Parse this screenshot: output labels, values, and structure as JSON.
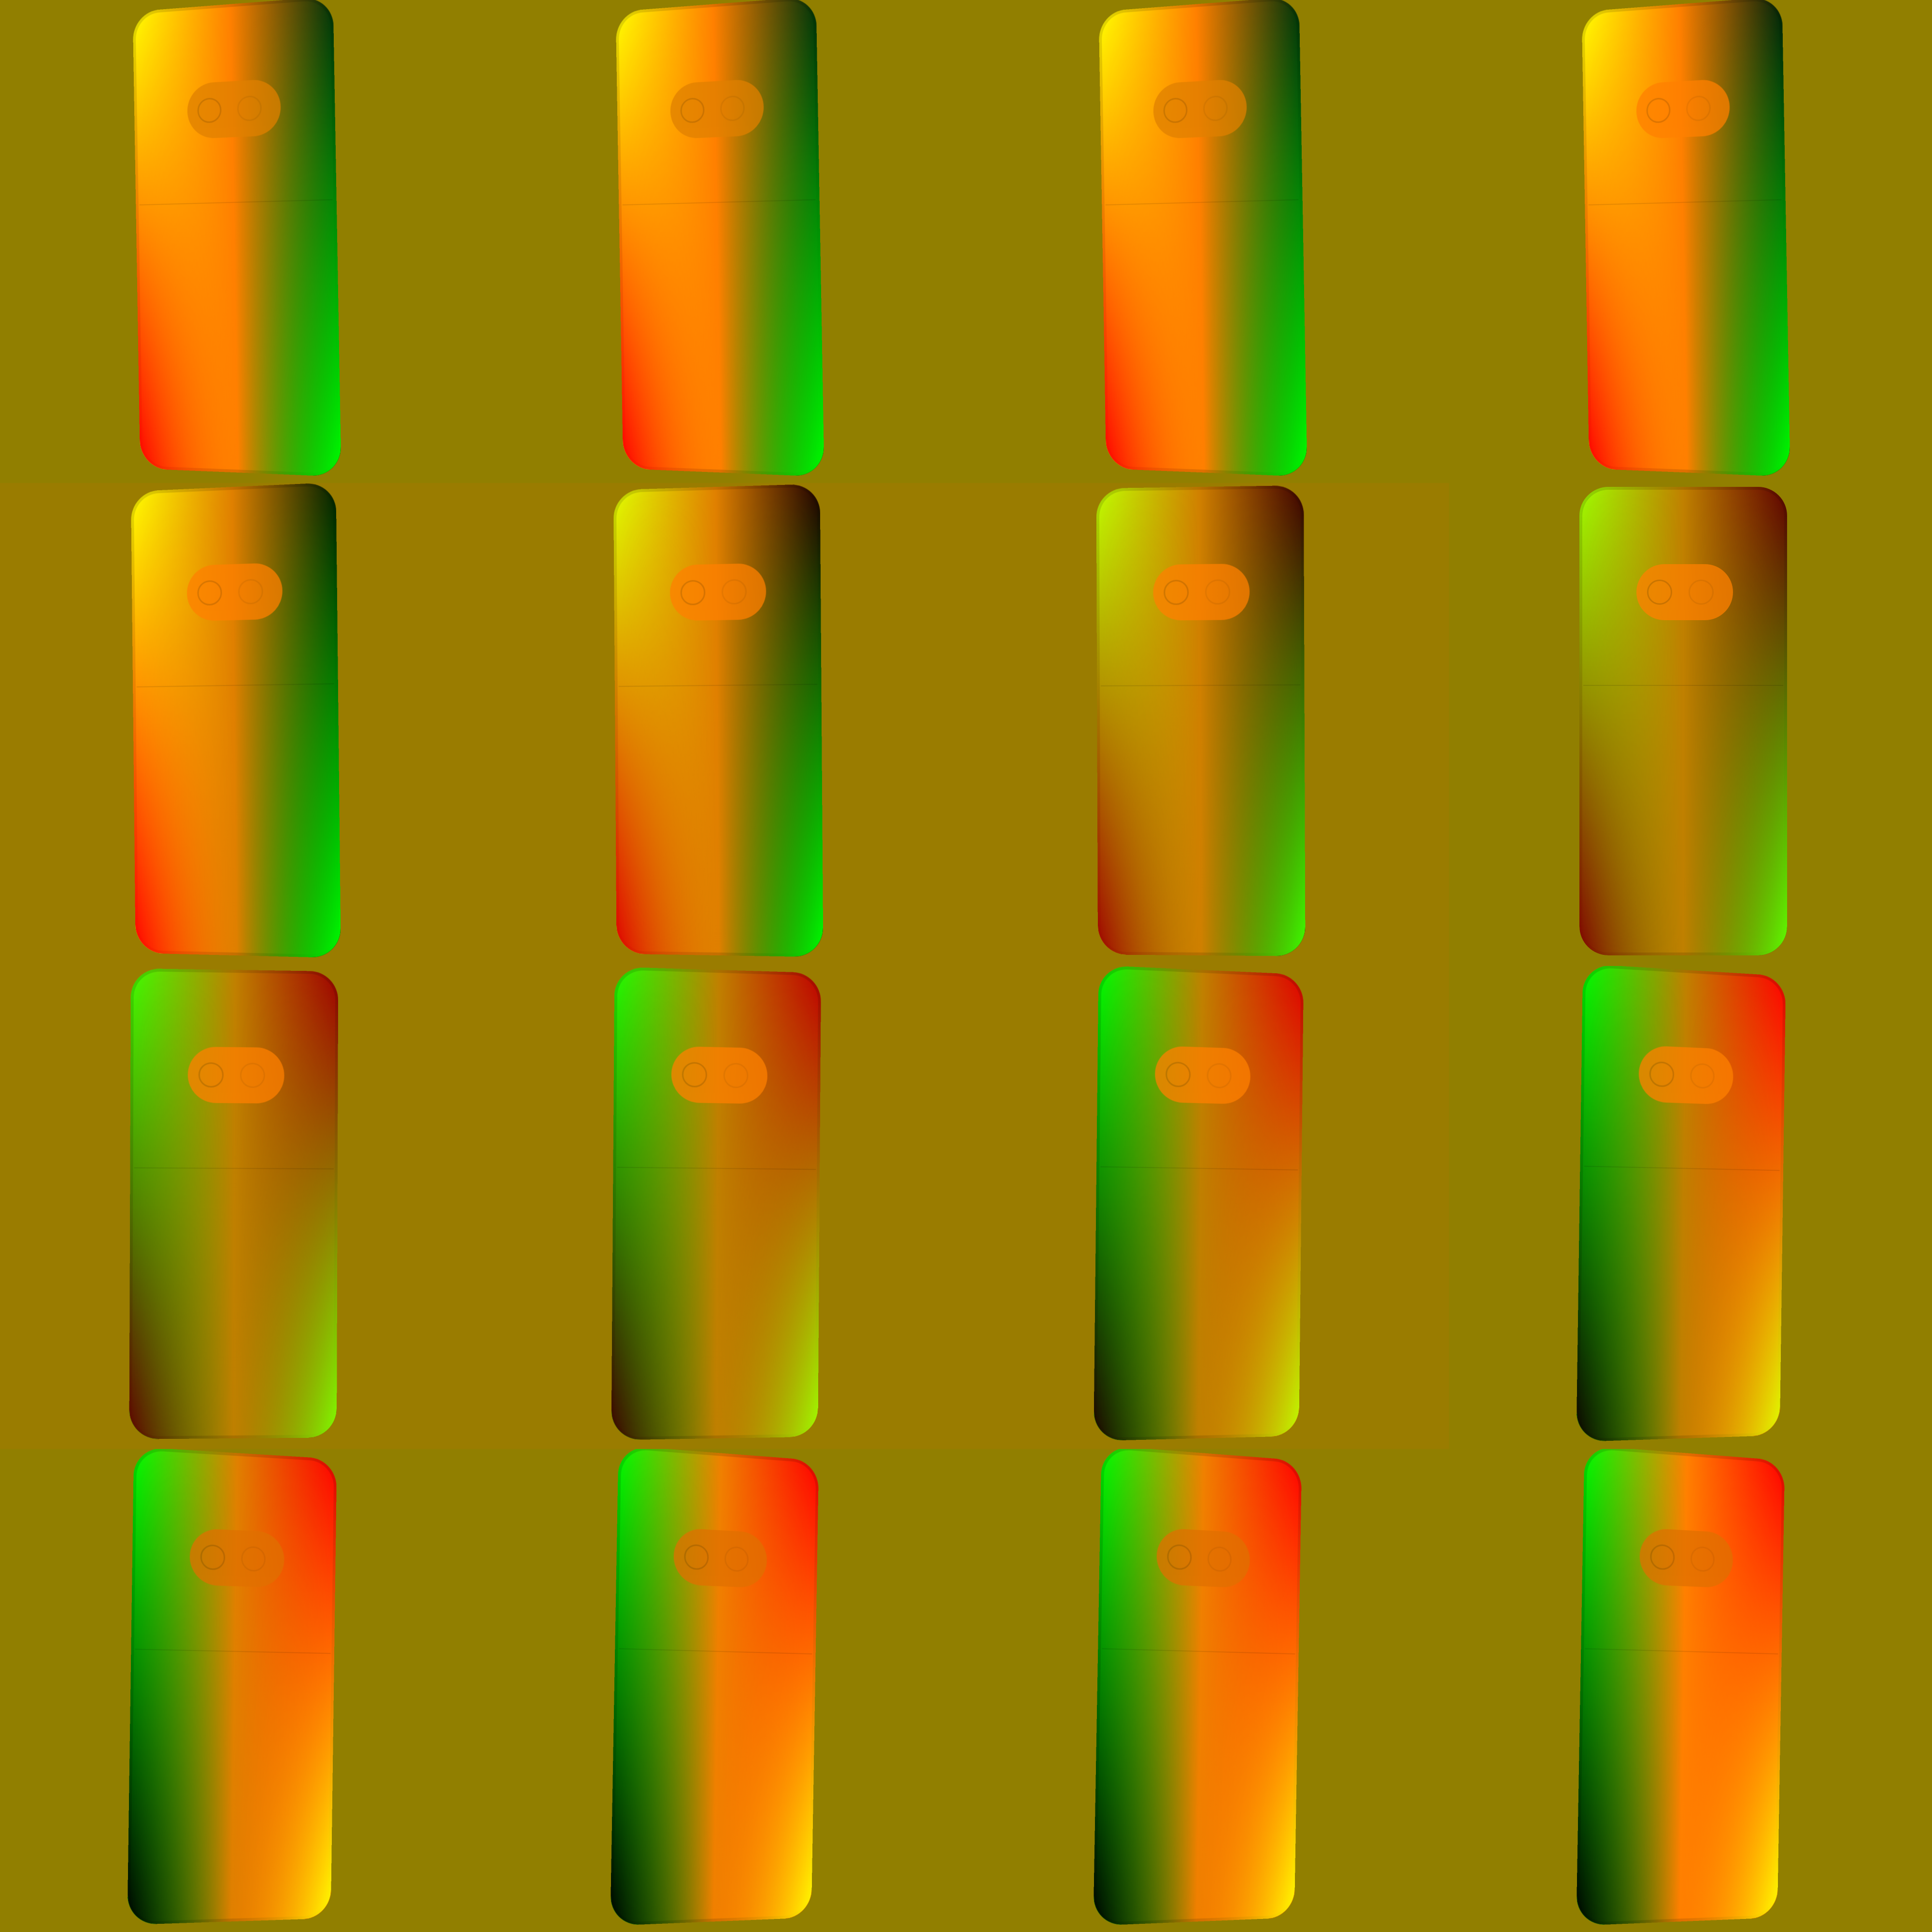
{
  "background_colors": [
    [
      "#917f00",
      "#917f00",
      "#917f00",
      "#917f00"
    ],
    [
      "#9a7c00",
      "#9a7c00",
      "#9a7c00",
      "#917f00"
    ],
    [
      "#9a7c00",
      "#9a7c00",
      "#9a7c00",
      "#917f00"
    ],
    [
      "#917f00",
      "#917f00",
      "#917f00",
      "#917f00"
    ]
  ],
  "rows": [
    {
      "phones": [
        {
          "name": "phone-1-1",
          "colors": {
            "tl": "#ffff00",
            "tr": "#00300a",
            "bl": "#ff0000",
            "br": "#00ff00",
            "mid": "#ff8000"
          },
          "camera": "#e08000",
          "tilt_deg": -2.5
        },
        {
          "name": "phone-1-2",
          "colors": {
            "tl": "#ffff00",
            "tr": "#00300a",
            "bl": "#ff0000",
            "br": "#00ff00",
            "mid": "#ff8000"
          },
          "camera": "#e08000",
          "tilt_deg": -2.5
        },
        {
          "name": "phone-1-3",
          "colors": {
            "tl": "#ffff00",
            "tr": "#00300a",
            "bl": "#ff0000",
            "br": "#00ff00",
            "mid": "#ff8000"
          },
          "camera": "#e08000",
          "tilt_deg": -2.5
        },
        {
          "name": "phone-1-4",
          "colors": {
            "tl": "#ffff00",
            "tr": "#00200a",
            "bl": "#ff0000",
            "br": "#00ff00",
            "mid": "#ff8000"
          },
          "camera": "#ff8000",
          "tilt_deg": -2.5
        }
      ]
    },
    {
      "phones": [
        {
          "name": "phone-2-1",
          "colors": {
            "tl": "#ffff00",
            "tr": "#002000",
            "bl": "#ff0000",
            "br": "#00ff00",
            "mid": "#e08000"
          },
          "camera": "#ff8000",
          "tilt_deg": -1.5
        },
        {
          "name": "phone-2-2",
          "colors": {
            "tl": "#e0ff00",
            "tr": "#200000",
            "bl": "#e00000",
            "br": "#00ff00",
            "mid": "#e08000"
          },
          "camera": "#ff8000",
          "tilt_deg": -1.0
        },
        {
          "name": "phone-2-3",
          "colors": {
            "tl": "#c0ff00",
            "tr": "#400000",
            "bl": "#a00000",
            "br": "#40ff00",
            "mid": "#d08000"
          },
          "camera": "#ff8000",
          "tilt_deg": -0.5
        },
        {
          "name": "phone-2-4",
          "colors": {
            "tl": "#a0ff00",
            "tr": "#600000",
            "bl": "#800000",
            "br": "#60ff00",
            "mid": "#c08000"
          },
          "camera": "#ff8000",
          "tilt_deg": 0
        }
      ]
    },
    {
      "phones": [
        {
          "name": "phone-3-1",
          "colors": {
            "tl": "#40ff00",
            "tr": "#a00000",
            "bl": "#600000",
            "br": "#80ff00",
            "mid": "#c08000"
          },
          "camera": "#ff8000",
          "tilt_deg": 0.5
        },
        {
          "name": "phone-3-2",
          "colors": {
            "tl": "#20ff00",
            "tr": "#c00000",
            "bl": "#400000",
            "br": "#a0ff00",
            "mid": "#c08000"
          },
          "camera": "#ff8000",
          "tilt_deg": 1.0
        },
        {
          "name": "phone-3-3",
          "colors": {
            "tl": "#00ff00",
            "tr": "#e00000",
            "bl": "#200000",
            "br": "#c0ff00",
            "mid": "#c08000"
          },
          "camera": "#ff8000",
          "tilt_deg": 1.5
        },
        {
          "name": "phone-3-4",
          "colors": {
            "tl": "#00ff00",
            "tr": "#ff0000",
            "bl": "#100000",
            "br": "#e0ff00",
            "mid": "#c08000"
          },
          "camera": "#ff8000",
          "tilt_deg": 2.0
        }
      ]
    },
    {
      "phones": [
        {
          "name": "phone-4-1",
          "colors": {
            "tl": "#00ff00",
            "tr": "#ff0000",
            "bl": "#000000",
            "br": "#ffff00",
            "mid": "#e08000"
          },
          "camera": "#e07000",
          "tilt_deg": 2.0
        },
        {
          "name": "phone-4-2",
          "colors": {
            "tl": "#00ff00",
            "tr": "#ff0000",
            "bl": "#000000",
            "br": "#ffff00",
            "mid": "#f08000"
          },
          "camera": "#e07000",
          "tilt_deg": 2.5
        },
        {
          "name": "phone-4-3",
          "colors": {
            "tl": "#00ff00",
            "tr": "#ff0000",
            "bl": "#000000",
            "br": "#ffff00",
            "mid": "#f08000"
          },
          "camera": "#e07000",
          "tilt_deg": 2.5
        },
        {
          "name": "phone-4-4",
          "colors": {
            "tl": "#00ff00",
            "tr": "#ff0000",
            "bl": "#000000",
            "br": "#ffff00",
            "mid": "#ff8000"
          },
          "camera": "#e07000",
          "tilt_deg": 2.5
        }
      ]
    }
  ]
}
